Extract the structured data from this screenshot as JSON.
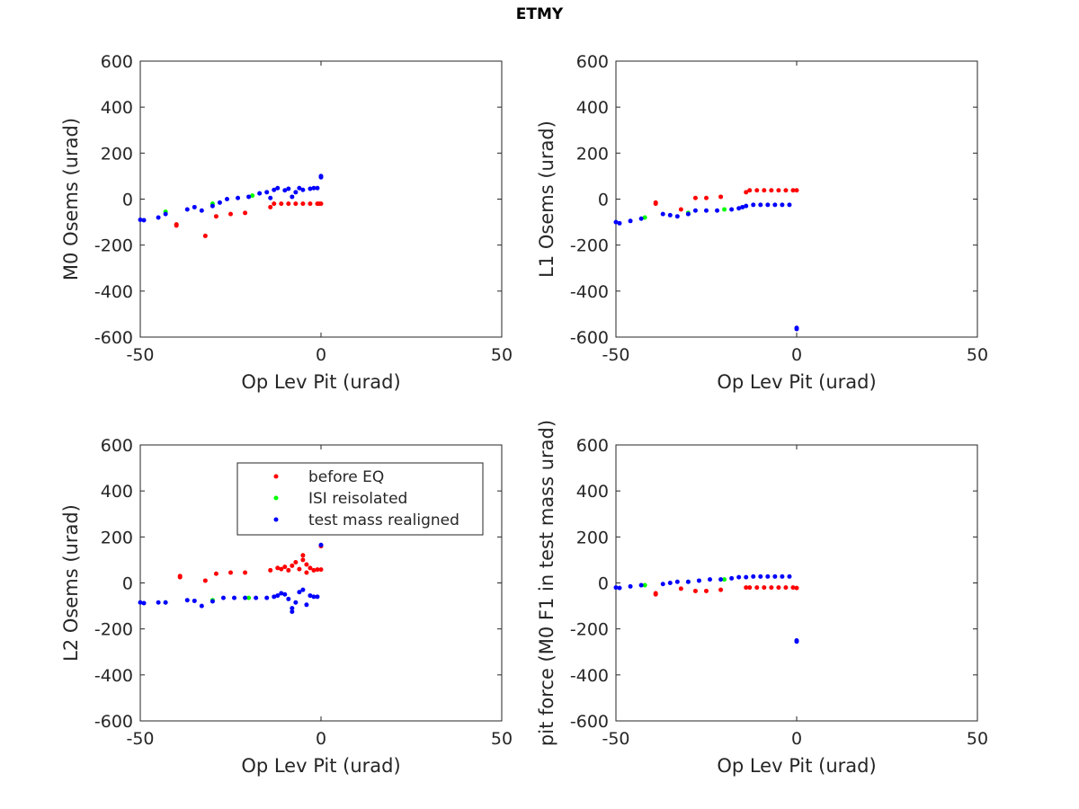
{
  "figure": {
    "title": "ETMY"
  },
  "chart_data": [
    {
      "type": "scatter",
      "xlabel": "Op Lev Pit (urad)",
      "ylabel": "M0 Osems (urad)",
      "xlim": [
        -50,
        50
      ],
      "ylim": [
        -600,
        600
      ],
      "xticks": [
        -50,
        0,
        50
      ],
      "yticks": [
        -600,
        -400,
        -200,
        0,
        200,
        400,
        600
      ],
      "grid": true,
      "series": [
        {
          "name": "before EQ",
          "color": "#ff0000",
          "points": [
            [
              -40,
              -115
            ],
            [
              -40,
              -110
            ],
            [
              -32,
              -160
            ],
            [
              -29,
              -75
            ],
            [
              -25,
              -65
            ],
            [
              -21,
              -60
            ],
            [
              -14,
              -35
            ],
            [
              -13,
              -20
            ],
            [
              -11,
              -20
            ],
            [
              -9,
              -20
            ],
            [
              -7,
              -20
            ],
            [
              -5,
              -20
            ],
            [
              -3,
              -20
            ],
            [
              -1,
              -20
            ],
            [
              -0.5,
              -20
            ],
            [
              0,
              -20
            ]
          ]
        },
        {
          "name": "ISI reisolated",
          "color": "#00ff00",
          "points": [
            [
              -43,
              -55
            ],
            [
              -30,
              -20
            ],
            [
              -19,
              15
            ]
          ]
        },
        {
          "name": "test mass realigned",
          "color": "#0000ff",
          "points": [
            [
              -50,
              -90
            ],
            [
              -49,
              -92
            ],
            [
              -45,
              -80
            ],
            [
              -43,
              -65
            ],
            [
              -37,
              -45
            ],
            [
              -35,
              -35
            ],
            [
              -33,
              -50
            ],
            [
              -30,
              -30
            ],
            [
              -28,
              -15
            ],
            [
              -26,
              0
            ],
            [
              -23,
              5
            ],
            [
              -20,
              10
            ],
            [
              -17,
              25
            ],
            [
              -15,
              30
            ],
            [
              -14,
              5
            ],
            [
              -13,
              40
            ],
            [
              -12,
              48
            ],
            [
              -10,
              38
            ],
            [
              -9,
              45
            ],
            [
              -8,
              10
            ],
            [
              -7,
              30
            ],
            [
              -6,
              48
            ],
            [
              -5,
              40
            ],
            [
              -3,
              45
            ],
            [
              -2,
              48
            ],
            [
              -1,
              48
            ],
            [
              0,
              100
            ],
            [
              0,
              95
            ]
          ]
        }
      ]
    },
    {
      "type": "scatter",
      "xlabel": "Op Lev Pit (urad)",
      "ylabel": "L1 Osems (urad)",
      "xlim": [
        -50,
        50
      ],
      "ylim": [
        -600,
        600
      ],
      "xticks": [
        -50,
        0,
        50
      ],
      "yticks": [
        -600,
        -400,
        -200,
        0,
        200,
        400,
        600
      ],
      "grid": true,
      "series": [
        {
          "name": "before EQ",
          "color": "#ff0000",
          "points": [
            [
              -39,
              -20
            ],
            [
              -39,
              -15
            ],
            [
              -32,
              -45
            ],
            [
              -28,
              5
            ],
            [
              -25,
              5
            ],
            [
              -21,
              10
            ],
            [
              -14,
              30
            ],
            [
              -13,
              38
            ],
            [
              -11,
              38
            ],
            [
              -9,
              38
            ],
            [
              -7,
              38
            ],
            [
              -5,
              38
            ],
            [
              -3,
              38
            ],
            [
              -1,
              38
            ],
            [
              0,
              38
            ]
          ]
        },
        {
          "name": "ISI reisolated",
          "color": "#00ff00",
          "points": [
            [
              -42,
              -80
            ],
            [
              -30,
              -60
            ],
            [
              -20,
              -45
            ]
          ]
        },
        {
          "name": "test mass realigned",
          "color": "#0000ff",
          "points": [
            [
              -50,
              -100
            ],
            [
              -49,
              -105
            ],
            [
              -46,
              -95
            ],
            [
              -43,
              -85
            ],
            [
              -37,
              -65
            ],
            [
              -35,
              -70
            ],
            [
              -33,
              -75
            ],
            [
              -30,
              -65
            ],
            [
              -28,
              -50
            ],
            [
              -25,
              -50
            ],
            [
              -22,
              -50
            ],
            [
              -18,
              -45
            ],
            [
              -16,
              -40
            ],
            [
              -15,
              -35
            ],
            [
              -14,
              -30
            ],
            [
              -12,
              -25
            ],
            [
              -10,
              -25
            ],
            [
              -8,
              -25
            ],
            [
              -6,
              -25
            ],
            [
              -4,
              -25
            ],
            [
              -2,
              -25
            ],
            [
              0,
              -560
            ],
            [
              0,
              -565
            ]
          ]
        }
      ]
    },
    {
      "type": "scatter",
      "xlabel": "Op Lev Pit (urad)",
      "ylabel": "L2 Osems (urad)",
      "xlim": [
        -50,
        50
      ],
      "ylim": [
        -600,
        600
      ],
      "xticks": [
        -50,
        0,
        50
      ],
      "yticks": [
        -600,
        -400,
        -200,
        0,
        200,
        400,
        600
      ],
      "grid": true,
      "legend": {
        "location": "upper-center",
        "entries": [
          {
            "label": "before EQ",
            "color": "#ff0000"
          },
          {
            "label": "ISI reisolated",
            "color": "#00ff00"
          },
          {
            "label": "test mass realigned",
            "color": "#0000ff"
          }
        ]
      },
      "series": [
        {
          "name": "before EQ",
          "color": "#ff0000",
          "points": [
            [
              -39,
              30
            ],
            [
              -39,
              25
            ],
            [
              -32,
              10
            ],
            [
              -29,
              40
            ],
            [
              -25,
              45
            ],
            [
              -21,
              45
            ],
            [
              -14,
              55
            ],
            [
              -12,
              65
            ],
            [
              -11,
              60
            ],
            [
              -10,
              70
            ],
            [
              -9,
              55
            ],
            [
              -8,
              75
            ],
            [
              -7,
              90
            ],
            [
              -6,
              60
            ],
            [
              -5,
              120
            ],
            [
              -5,
              100
            ],
            [
              -4,
              80
            ],
            [
              -4,
              45
            ],
            [
              -3,
              65
            ],
            [
              -2,
              55
            ],
            [
              -1,
              58
            ],
            [
              0,
              58
            ],
            [
              0,
              160
            ]
          ]
        },
        {
          "name": "ISI reisolated",
          "color": "#00ff00",
          "points": [
            [
              -43,
              -85
            ],
            [
              -30,
              -75
            ],
            [
              -20,
              -65
            ]
          ]
        },
        {
          "name": "test mass realigned",
          "color": "#0000ff",
          "points": [
            [
              -50,
              -85
            ],
            [
              -49,
              -88
            ],
            [
              -45,
              -85
            ],
            [
              -43,
              -85
            ],
            [
              -37,
              -75
            ],
            [
              -35,
              -78
            ],
            [
              -33,
              -100
            ],
            [
              -30,
              -80
            ],
            [
              -27,
              -65
            ],
            [
              -24,
              -65
            ],
            [
              -21,
              -65
            ],
            [
              -18,
              -65
            ],
            [
              -15,
              -65
            ],
            [
              -13,
              -60
            ],
            [
              -12,
              -55
            ],
            [
              -11,
              -45
            ],
            [
              -10,
              -50
            ],
            [
              -9,
              -70
            ],
            [
              -8,
              -125
            ],
            [
              -8,
              -110
            ],
            [
              -7,
              -85
            ],
            [
              -6,
              -40
            ],
            [
              -5,
              -30
            ],
            [
              -4,
              -95
            ],
            [
              -3,
              -55
            ],
            [
              -2,
              -60
            ],
            [
              -1,
              -60
            ],
            [
              0,
              165
            ]
          ]
        }
      ]
    },
    {
      "type": "scatter",
      "xlabel": "Op Lev Pit (urad)",
      "ylabel": "pit force (M0 F1 in test mass urad)",
      "xlim": [
        -50,
        50
      ],
      "ylim": [
        -600,
        600
      ],
      "xticks": [
        -50,
        0,
        50
      ],
      "yticks": [
        -600,
        -400,
        -200,
        0,
        200,
        400,
        600
      ],
      "grid": true,
      "series": [
        {
          "name": "before EQ",
          "color": "#ff0000",
          "points": [
            [
              -39,
              -50
            ],
            [
              -39,
              -45
            ],
            [
              -32,
              -25
            ],
            [
              -28,
              -35
            ],
            [
              -25,
              -35
            ],
            [
              -21,
              -30
            ],
            [
              -14,
              -20
            ],
            [
              -13,
              -20
            ],
            [
              -11,
              -20
            ],
            [
              -9,
              -20
            ],
            [
              -7,
              -20
            ],
            [
              -5,
              -20
            ],
            [
              -3,
              -20
            ],
            [
              -1,
              -20
            ],
            [
              0,
              -22
            ]
          ]
        },
        {
          "name": "ISI reisolated",
          "color": "#00ff00",
          "points": [
            [
              -42,
              -10
            ],
            [
              -30,
              5
            ],
            [
              -20,
              15
            ]
          ]
        },
        {
          "name": "test mass realigned",
          "color": "#0000ff",
          "points": [
            [
              -50,
              -20
            ],
            [
              -49,
              -22
            ],
            [
              -46,
              -15
            ],
            [
              -43,
              -10
            ],
            [
              -37,
              -5
            ],
            [
              -35,
              0
            ],
            [
              -33,
              5
            ],
            [
              -30,
              5
            ],
            [
              -27,
              10
            ],
            [
              -24,
              15
            ],
            [
              -21,
              15
            ],
            [
              -18,
              20
            ],
            [
              -16,
              25
            ],
            [
              -14,
              25
            ],
            [
              -12,
              28
            ],
            [
              -10,
              28
            ],
            [
              -8,
              28
            ],
            [
              -6,
              28
            ],
            [
              -4,
              28
            ],
            [
              -2,
              28
            ],
            [
              0,
              -255
            ],
            [
              0,
              -250
            ]
          ]
        }
      ]
    }
  ]
}
